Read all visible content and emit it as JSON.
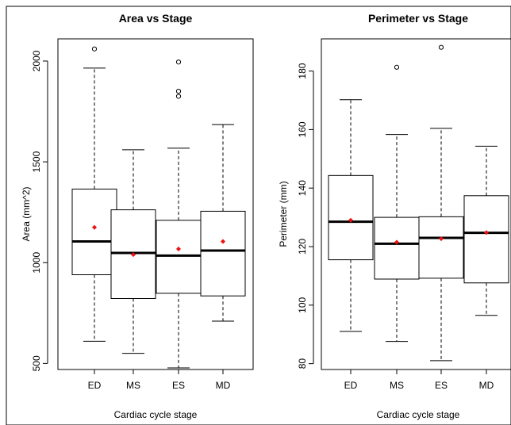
{
  "chart_data": [
    {
      "type": "boxplot",
      "title": "Area vs Stage",
      "xlabel": "Cardiac cycle stage",
      "ylabel": "Area (mm^2)",
      "categories": [
        "ED",
        "MS",
        "ES",
        "MD"
      ],
      "ylim": [
        470,
        2110
      ],
      "yticks": [
        500,
        1000,
        1500,
        2000
      ],
      "boxes": [
        {
          "category": "ED",
          "whisker_low": 610,
          "q1": 940,
          "median": 1105,
          "q3": 1365,
          "whisker_high": 1965,
          "mean": 1175,
          "outliers": [
            2060
          ]
        },
        {
          "category": "MS",
          "whisker_low": 550,
          "q1": 822,
          "median": 1048,
          "q3": 1262,
          "whisker_high": 1560,
          "mean": 1040,
          "outliers": []
        },
        {
          "category": "ES",
          "whisker_low": 478,
          "q1": 848,
          "median": 1035,
          "q3": 1210,
          "whisker_high": 1568,
          "mean": 1068,
          "outliers": [
            1825,
            1850,
            1995
          ]
        },
        {
          "category": "MD",
          "whisker_low": 710,
          "q1": 835,
          "median": 1060,
          "q3": 1255,
          "whisker_high": 1685,
          "mean": 1105,
          "outliers": []
        }
      ]
    },
    {
      "type": "boxplot",
      "title": "Perimeter vs Stage",
      "xlabel": "Cardiac cycle stage",
      "ylabel": "Perimeter (mm)",
      "categories": [
        "ED",
        "MS",
        "ES",
        "MD"
      ],
      "ylim": [
        78,
        191
      ],
      "yticks": [
        80,
        100,
        120,
        140,
        160,
        180
      ],
      "boxes": [
        {
          "category": "ED",
          "whisker_low": 91,
          "q1": 115.5,
          "median": 128.5,
          "q3": 144.3,
          "whisker_high": 170.2,
          "mean": 129,
          "outliers": []
        },
        {
          "category": "MS",
          "whisker_low": 87.6,
          "q1": 108.9,
          "median": 121,
          "q3": 130,
          "whisker_high": 158.3,
          "mean": 121.5,
          "outliers": [
            181.3
          ]
        },
        {
          "category": "ES",
          "whisker_low": 81,
          "q1": 109.2,
          "median": 123,
          "q3": 130.2,
          "whisker_high": 160.4,
          "mean": 122.7,
          "outliers": [
            188.1
          ]
        },
        {
          "category": "MD",
          "whisker_low": 96.5,
          "q1": 107.6,
          "median": 124.7,
          "q3": 137.4,
          "whisker_high": 154.3,
          "mean": 124.8,
          "outliers": []
        }
      ]
    }
  ],
  "colors": {
    "mean_marker": "#ee1111",
    "box_stroke": "#000000",
    "background": "#ffffff"
  }
}
